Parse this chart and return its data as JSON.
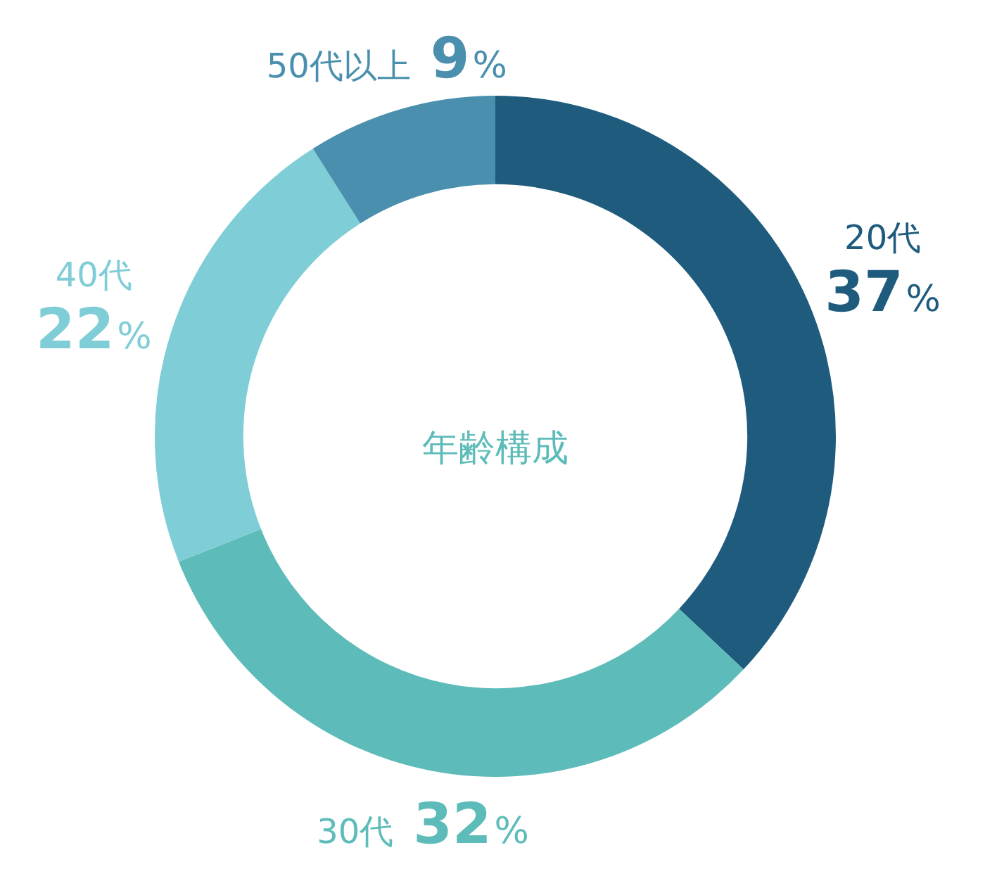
{
  "chart_data": {
    "type": "donut",
    "title": "年齢構成",
    "categories": [
      "20代",
      "30代",
      "40代",
      "50代以上"
    ],
    "values": [
      37,
      32,
      22,
      9
    ],
    "colors": [
      "#1e5b7d",
      "#5dbcb9",
      "#7fcdd6",
      "#4a90ae"
    ],
    "value_labels": [
      "37%",
      "32%",
      "22%",
      "9%"
    ],
    "legend": false
  }
}
